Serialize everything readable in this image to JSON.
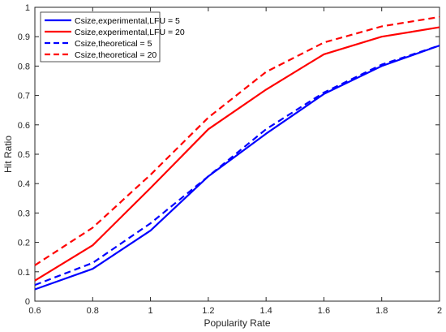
{
  "chart_data": {
    "type": "line",
    "xlabel": "Popularity Rate",
    "ylabel": "Hit Ratio",
    "xlim": [
      0.6,
      2
    ],
    "ylim": [
      0,
      1
    ],
    "xticks": [
      "0.6",
      "0.8",
      "1",
      "1.2",
      "1.4",
      "1.6",
      "1.8",
      "2"
    ],
    "yticks": [
      "0",
      "0.1",
      "0.2",
      "0.3",
      "0.4",
      "0.5",
      "0.6",
      "0.7",
      "0.8",
      "0.9",
      "1"
    ],
    "grid": false,
    "legend_position": "top-left",
    "x": [
      0.6,
      0.8,
      1.0,
      1.2,
      1.4,
      1.6,
      1.8,
      2.0
    ],
    "series": [
      {
        "name": "Csize,experimental,LFU = 5",
        "color": "#0000ff",
        "style": "solid",
        "values": [
          0.04,
          0.11,
          0.24,
          0.425,
          0.57,
          0.705,
          0.8,
          0.87
        ]
      },
      {
        "name": "Csize,experimental,LFU = 20",
        "color": "#ff0000",
        "style": "solid",
        "values": [
          0.07,
          0.19,
          0.385,
          0.585,
          0.72,
          0.84,
          0.9,
          0.932
        ]
      },
      {
        "name": "Csize,theoretical = 5",
        "color": "#0000ff",
        "style": "dashed",
        "values": [
          0.055,
          0.13,
          0.265,
          0.425,
          0.585,
          0.71,
          0.805,
          0.87
        ]
      },
      {
        "name": "Csize,theoretical = 20",
        "color": "#ff0000",
        "style": "dashed",
        "values": [
          0.122,
          0.25,
          0.43,
          0.625,
          0.78,
          0.88,
          0.935,
          0.967
        ]
      }
    ]
  }
}
